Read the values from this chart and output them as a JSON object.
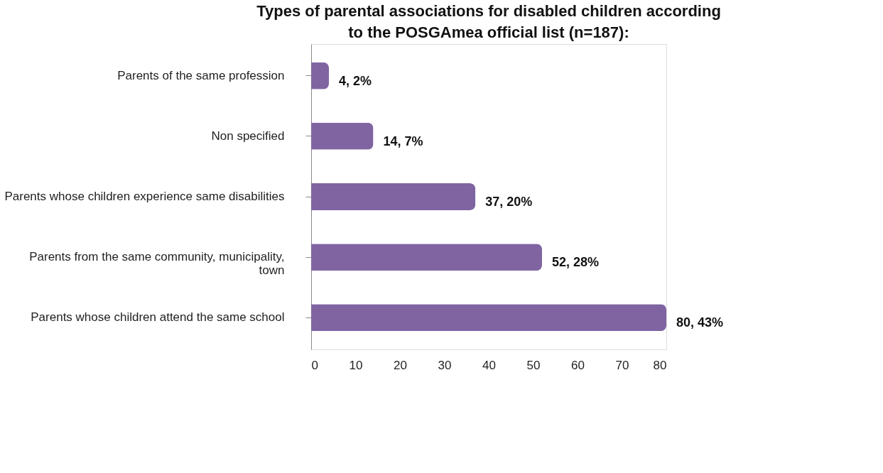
{
  "chart_data": {
    "type": "bar",
    "orientation": "horizontal",
    "title": "Types of parental associations for disabled children according\nto the POSGAmea official list (n=187):",
    "categories": [
      "Parents of the same profession",
      "Non specified",
      "Parents whose children experience same disabilities",
      "Parents from the same community, municipality,\ntown",
      "Parents whose children attend the same school"
    ],
    "values": [
      4,
      14,
      37,
      52,
      80
    ],
    "value_labels": [
      "4, 2%",
      "14, 7%",
      "37, 20%",
      "52, 28%",
      "80, 43%"
    ],
    "color": "#8064a2",
    "xlim": [
      0,
      80
    ],
    "xticks": [
      0,
      10,
      20,
      30,
      40,
      50,
      60,
      70,
      80
    ],
    "grid": false
  }
}
